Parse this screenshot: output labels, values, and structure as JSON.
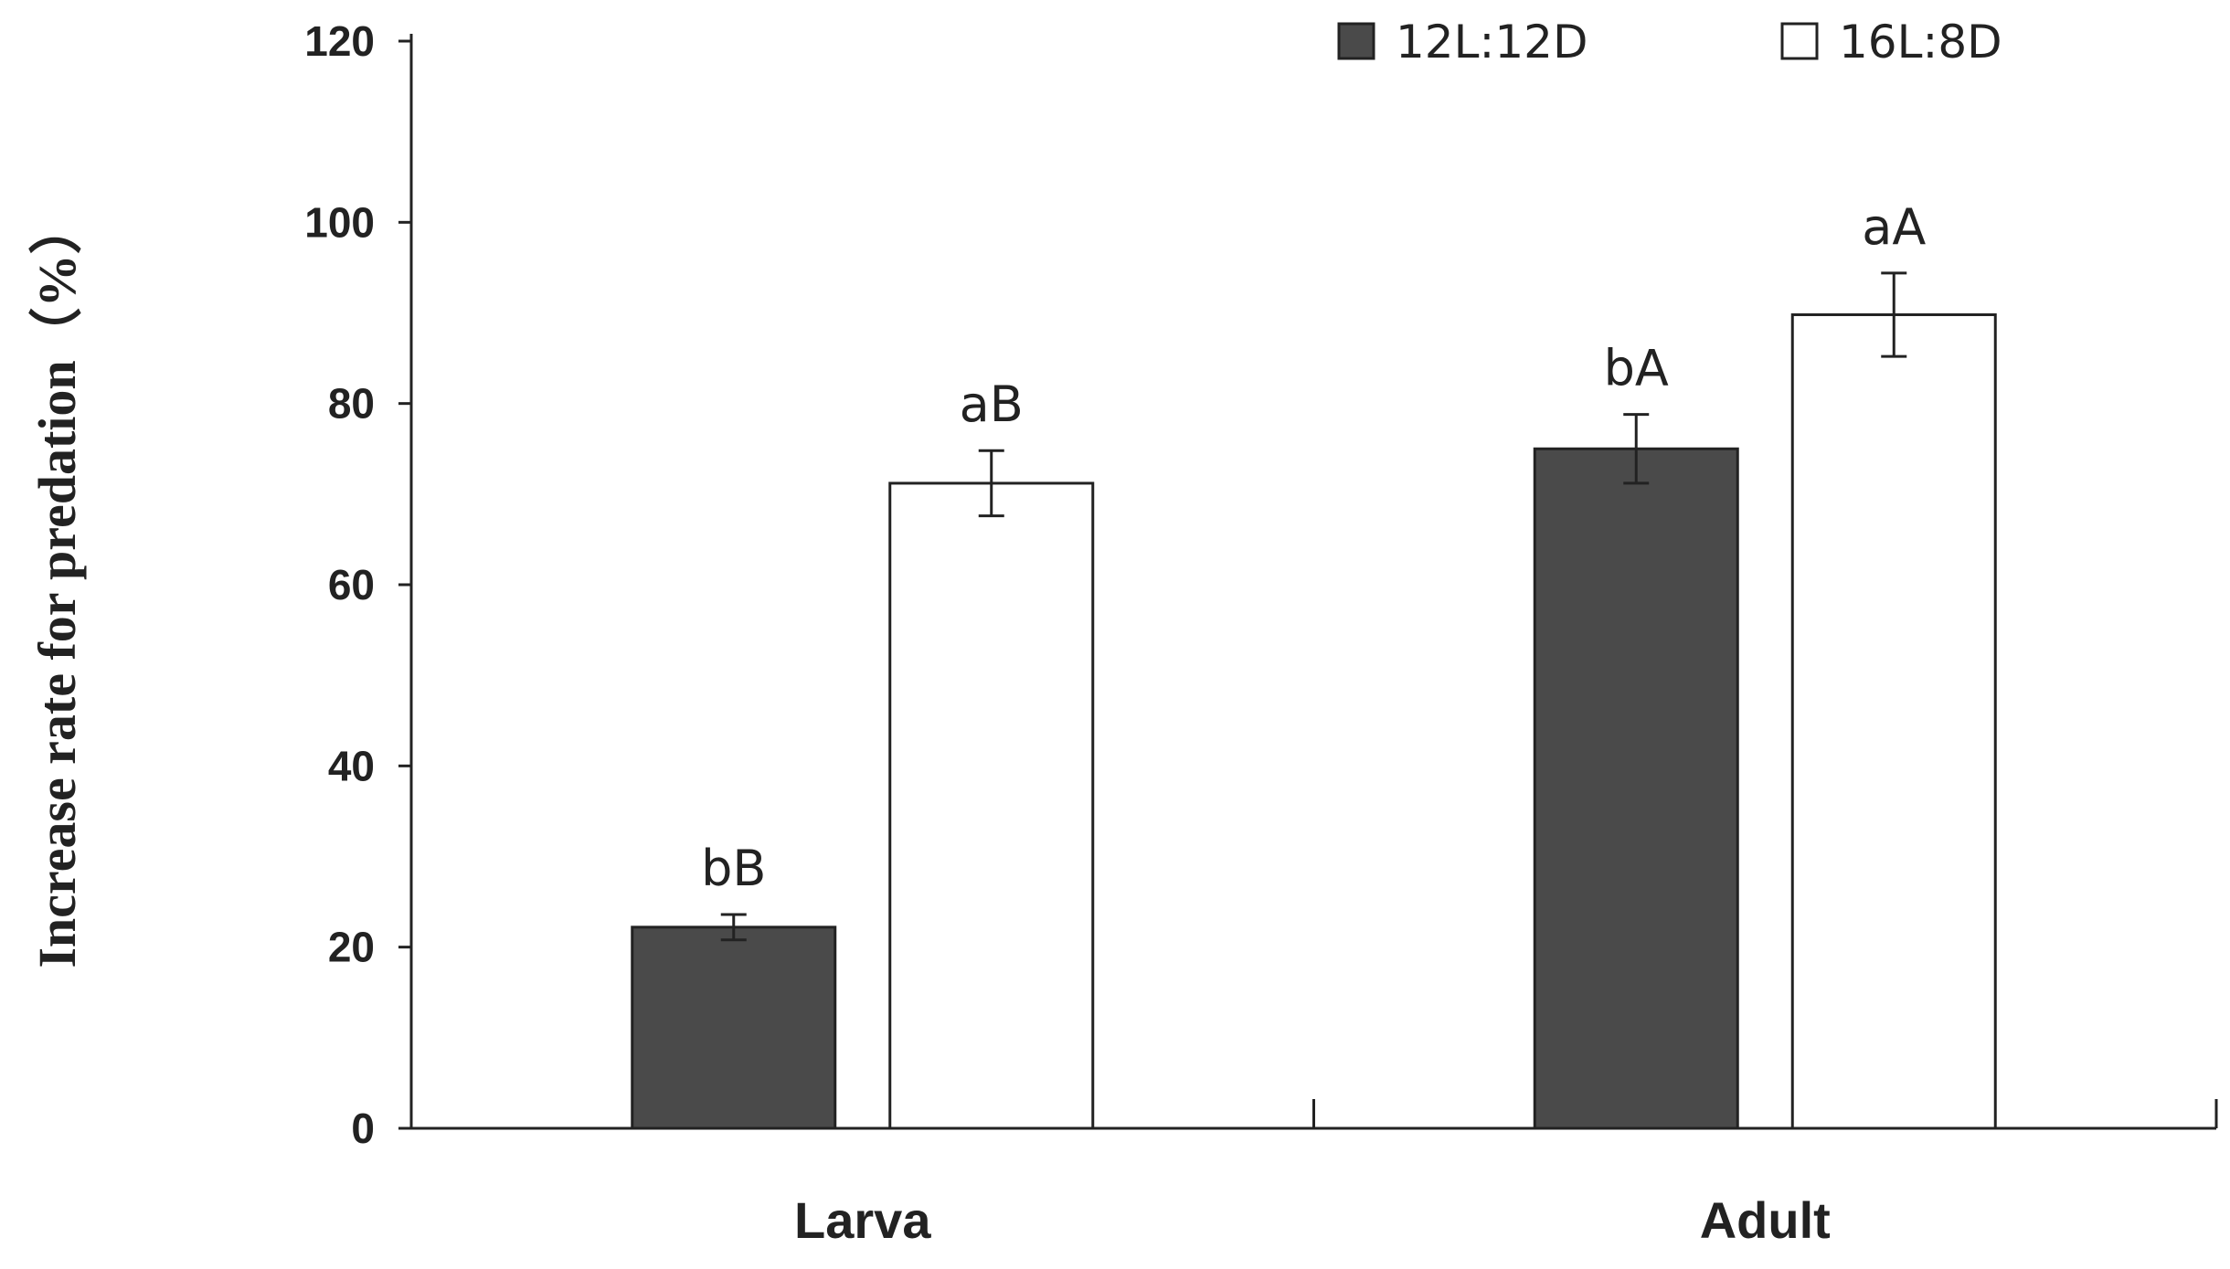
{
  "chart_data": {
    "type": "bar",
    "categories": [
      "Larva",
      "Adult"
    ],
    "series": [
      {
        "name": "12L:12D",
        "values": [
          22.2,
          75.0
        ],
        "errors": [
          1.4,
          3.8
        ],
        "labels": [
          "bB",
          "bA"
        ],
        "color": "#4a4a4a"
      },
      {
        "name": "16L:8D",
        "values": [
          71.2,
          89.8
        ],
        "errors": [
          3.6,
          4.6
        ],
        "labels": [
          "aB",
          "aA"
        ],
        "color": "#ffffff"
      }
    ],
    "title": "",
    "xlabel": "",
    "ylabel": "Increase rate for predation（%）",
    "ylim": [
      0,
      120
    ],
    "yticks": [
      0,
      20,
      40,
      60,
      80,
      100,
      120
    ],
    "grid": false,
    "legend_position": "top-right"
  }
}
